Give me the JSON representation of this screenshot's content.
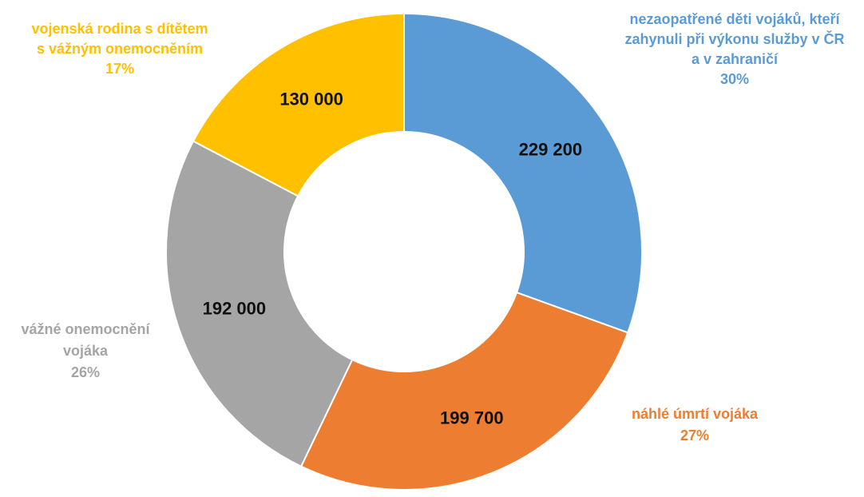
{
  "chart_data": {
    "type": "donut",
    "title": "",
    "start_angle_deg": 0,
    "slices": [
      {
        "value": 229200,
        "value_label": "229 200",
        "category_lines": [
          "nezaopatřené děti vojáků, kteří",
          "zahynuli při výkonu služby v ČR",
          "a v zahraničí"
        ],
        "percent_label": "30%",
        "color": "#5B9BD5"
      },
      {
        "value": 199700,
        "value_label": "199 700",
        "category_lines": [
          "náhlé úmrtí vojáka"
        ],
        "percent_label": "27%",
        "color": "#ED7D31"
      },
      {
        "value": 192000,
        "value_label": "192 000",
        "category_lines": [
          "vážné onemocnění",
          "vojáka"
        ],
        "percent_label": "26%",
        "color": "#A5A5A5"
      },
      {
        "value": 130000,
        "value_label": "130 000",
        "category_lines": [
          "vojenská rodina s dítětem",
          "s vážným onemocněním"
        ],
        "percent_label": "17%",
        "color": "#FFC000"
      }
    ]
  }
}
